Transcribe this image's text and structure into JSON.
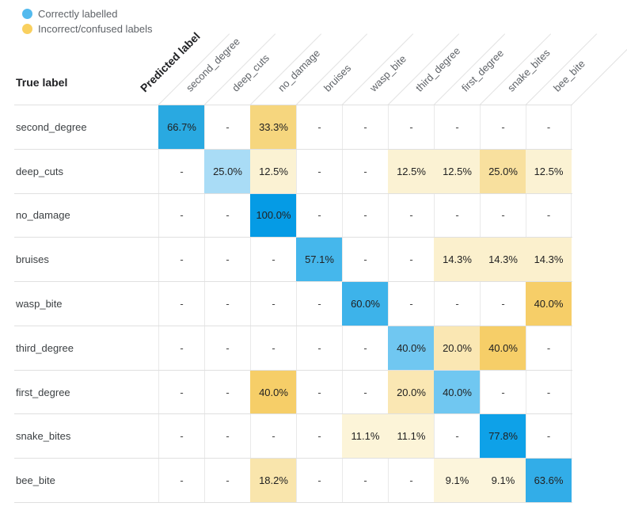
{
  "legend": {
    "items": [
      {
        "name": "correctly-labelled",
        "label": "Correctly labelled",
        "color": "#53BAEE"
      },
      {
        "name": "incorrect-confused-labels",
        "label": "Incorrect/confused labels",
        "color": "#F9D05F"
      }
    ]
  },
  "axis": {
    "predicted": "Predicted label",
    "true": "True label"
  },
  "predicted_columns": [
    "second_degree",
    "deep_cuts",
    "no_damage",
    "bruises",
    "wasp_bite",
    "third_degree",
    "first_degree",
    "snake_bites",
    "bee_bite"
  ],
  "matrix_display": {
    "empty": "-",
    "rows": [
      {
        "label": "second_degree",
        "cells": [
          {
            "t": "66.7%",
            "bg": "#29A9E1"
          },
          {
            "t": "-"
          },
          {
            "t": "33.3%",
            "bg": "#F6D67E"
          },
          {
            "t": "-"
          },
          {
            "t": "-"
          },
          {
            "t": "-"
          },
          {
            "t": "-"
          },
          {
            "t": "-"
          },
          {
            "t": "-"
          }
        ]
      },
      {
        "label": "deep_cuts",
        "cells": [
          {
            "t": "-"
          },
          {
            "t": "25.0%",
            "bg": "#A9DCF6"
          },
          {
            "t": "12.5%",
            "bg": "#FBF2D3"
          },
          {
            "t": "-"
          },
          {
            "t": "-"
          },
          {
            "t": "12.5%",
            "bg": "#FBF2D3"
          },
          {
            "t": "12.5%",
            "bg": "#FBF2D3"
          },
          {
            "t": "25.0%",
            "bg": "#F8E09E"
          },
          {
            "t": "12.5%",
            "bg": "#FBF2D3"
          }
        ]
      },
      {
        "label": "no_damage",
        "cells": [
          {
            "t": "-"
          },
          {
            "t": "-"
          },
          {
            "t": "100.0%",
            "bg": "#059BE5"
          },
          {
            "t": "-"
          },
          {
            "t": "-"
          },
          {
            "t": "-"
          },
          {
            "t": "-"
          },
          {
            "t": "-"
          },
          {
            "t": "-"
          }
        ]
      },
      {
        "label": "bruises",
        "cells": [
          {
            "t": "-"
          },
          {
            "t": "-"
          },
          {
            "t": "-"
          },
          {
            "t": "57.1%",
            "bg": "#45B7EC"
          },
          {
            "t": "-"
          },
          {
            "t": "-"
          },
          {
            "t": "14.3%",
            "bg": "#FBF0CD"
          },
          {
            "t": "14.3%",
            "bg": "#FBF0CD"
          },
          {
            "t": "14.3%",
            "bg": "#FBF0CD"
          }
        ]
      },
      {
        "label": "wasp_bite",
        "cells": [
          {
            "t": "-"
          },
          {
            "t": "-"
          },
          {
            "t": "-"
          },
          {
            "t": "-"
          },
          {
            "t": "60.0%",
            "bg": "#3DB3EA"
          },
          {
            "t": "-"
          },
          {
            "t": "-"
          },
          {
            "t": "-"
          },
          {
            "t": "40.0%",
            "bg": "#F6CE68"
          }
        ]
      },
      {
        "label": "third_degree",
        "cells": [
          {
            "t": "-"
          },
          {
            "t": "-"
          },
          {
            "t": "-"
          },
          {
            "t": "-"
          },
          {
            "t": "-"
          },
          {
            "t": "40.0%",
            "bg": "#70C7F1"
          },
          {
            "t": "20.0%",
            "bg": "#FAE7B3"
          },
          {
            "t": "40.0%",
            "bg": "#F6CE68"
          },
          {
            "t": "-"
          }
        ]
      },
      {
        "label": "first_degree",
        "cells": [
          {
            "t": "-"
          },
          {
            "t": "-"
          },
          {
            "t": "40.0%",
            "bg": "#F6CE68"
          },
          {
            "t": "-"
          },
          {
            "t": "-"
          },
          {
            "t": "20.0%",
            "bg": "#FAE7B3"
          },
          {
            "t": "40.0%",
            "bg": "#70C7F1"
          },
          {
            "t": "-"
          },
          {
            "t": "-"
          }
        ]
      },
      {
        "label": "snake_bites",
        "cells": [
          {
            "t": "-"
          },
          {
            "t": "-"
          },
          {
            "t": "-"
          },
          {
            "t": "-"
          },
          {
            "t": "11.1%",
            "bg": "#FCF4D8"
          },
          {
            "t": "11.1%",
            "bg": "#FCF4D8"
          },
          {
            "t": "-"
          },
          {
            "t": "77.8%",
            "bg": "#0EA1E8"
          },
          {
            "t": "-"
          }
        ]
      },
      {
        "label": "bee_bite",
        "cells": [
          {
            "t": "-"
          },
          {
            "t": "-"
          },
          {
            "t": "18.2%",
            "bg": "#F9E5AC"
          },
          {
            "t": "-"
          },
          {
            "t": "-"
          },
          {
            "t": "-"
          },
          {
            "t": "9.1%",
            "bg": "#FCF5DC"
          },
          {
            "t": "9.1%",
            "bg": "#FCF5DC"
          },
          {
            "t": "63.6%",
            "bg": "#32ADE8"
          }
        ]
      }
    ]
  },
  "colors": {
    "correct_accent": "#29A9E1",
    "correct_max": "#059BE5",
    "confused_accent": "#F6CE68",
    "grid_line": "#E0E0E0",
    "diagonal_separator": "#E2E2E2",
    "header_text": "#5F6368",
    "strong_text": "#202124"
  },
  "chart_data": {
    "type": "heatmap",
    "x_label": "Predicted label",
    "y_label": "True label",
    "x_categories": [
      "second_degree",
      "deep_cuts",
      "no_damage",
      "bruises",
      "wasp_bite",
      "third_degree",
      "first_degree",
      "snake_bites",
      "bee_bite"
    ],
    "y_categories": [
      "second_degree",
      "deep_cuts",
      "no_damage",
      "bruises",
      "wasp_bite",
      "third_degree",
      "first_degree",
      "snake_bites",
      "bee_bite"
    ],
    "values_percent": [
      [
        66.7,
        null,
        33.3,
        null,
        null,
        null,
        null,
        null,
        null
      ],
      [
        null,
        25.0,
        12.5,
        null,
        null,
        12.5,
        12.5,
        25.0,
        12.5
      ],
      [
        null,
        null,
        100.0,
        null,
        null,
        null,
        null,
        null,
        null
      ],
      [
        null,
        null,
        null,
        57.1,
        null,
        null,
        14.3,
        14.3,
        14.3
      ],
      [
        null,
        null,
        null,
        null,
        60.0,
        null,
        null,
        null,
        40.0
      ],
      [
        null,
        null,
        null,
        null,
        null,
        40.0,
        20.0,
        40.0,
        null
      ],
      [
        null,
        null,
        40.0,
        null,
        null,
        20.0,
        40.0,
        null,
        null
      ],
      [
        null,
        null,
        null,
        null,
        11.1,
        11.1,
        null,
        77.8,
        null
      ],
      [
        null,
        null,
        18.2,
        null,
        null,
        null,
        9.1,
        9.1,
        63.6
      ]
    ],
    "legend": [
      "Correctly labelled",
      "Incorrect/confused labels"
    ],
    "color_semantics": {
      "diagonal_correct": "blue scale (darker = higher %)",
      "off_diagonal_confused": "yellow scale (darker = higher %)"
    },
    "layout_hints": {
      "column_headers_rotated_degrees": 45,
      "grid": "on"
    }
  }
}
